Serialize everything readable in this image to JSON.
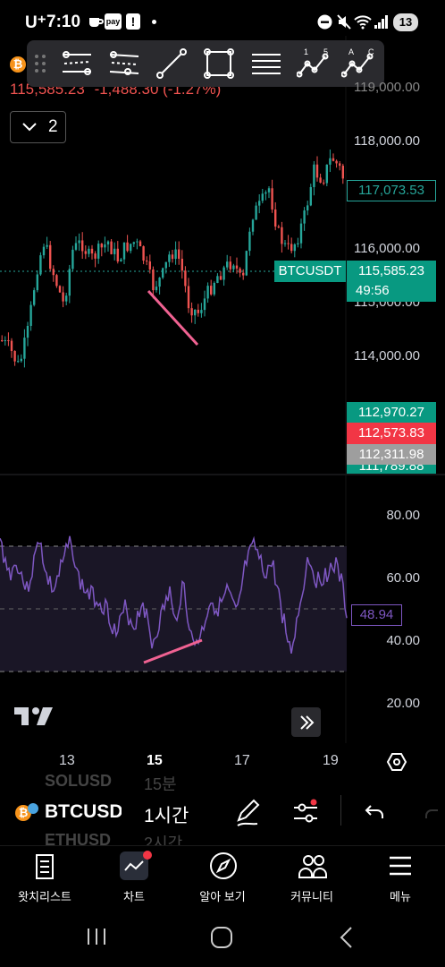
{
  "status_bar": {
    "carrier": "U⁺",
    "time": "7:10",
    "pay_badge": "pay",
    "notification_count": "13"
  },
  "header": {
    "last_price": "115,585.23",
    "change": "-1,488.30 (-1.27%)",
    "collapse_count": "2"
  },
  "price_axis": [
    "119,000.00",
    "118,000.00",
    "116,000.00",
    "115,000.00",
    "114,000.00"
  ],
  "price_tags": [
    {
      "label": "117,073.53",
      "style": "outline"
    },
    {
      "label": "BTCUSDT",
      "style": "green-left"
    },
    {
      "label": "115,585.23",
      "style": "green"
    },
    {
      "label": "49:56",
      "style": "green"
    },
    {
      "label": "112,970.27",
      "style": "green"
    },
    {
      "label": "112,573.83",
      "style": "red"
    },
    {
      "label": "112,311.98",
      "style": "gray"
    },
    {
      "label": "111,789.88",
      "style": "green"
    }
  ],
  "rsi_axis": [
    "80.00",
    "60.00",
    "40.00",
    "20.00"
  ],
  "rsi_value": "48.94",
  "time_axis": [
    "13",
    "15",
    "17",
    "19"
  ],
  "symbol_row": {
    "ghost_above_symbol": "SOLUSD",
    "ghost_above_interval": "15분",
    "symbol": "BTCUSDT",
    "interval": "1시간",
    "ghost_below_symbol": "ETHUSD",
    "ghost_below_interval": "2시간"
  },
  "bottom_nav": [
    {
      "label": "왓치리스트",
      "icon": "watchlist-icon"
    },
    {
      "label": "차트",
      "icon": "chart-icon"
    },
    {
      "label": "알아 보기",
      "icon": "compass-icon"
    },
    {
      "label": "커뮤니티",
      "icon": "community-icon"
    },
    {
      "label": "메뉴",
      "icon": "menu-icon"
    }
  ],
  "colors": {
    "up": "#26a69a",
    "down": "#ef5350",
    "rsi": "#7e57c2",
    "trendline": "#f06292",
    "tag_green": "#089981",
    "tag_red": "#f23645"
  }
}
